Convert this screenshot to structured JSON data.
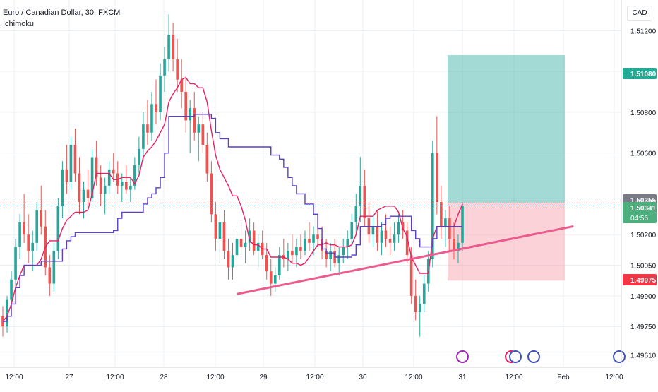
{
  "header": {
    "symbol_line": "Euro / Canadian Dollar, 30, FXCM",
    "indicator": "Ichimoku",
    "currency": "CAD"
  },
  "colors": {
    "up_candle": "#26a69a",
    "down_candle": "#ef5350",
    "conversion_line": "#e91e63",
    "base_line": "#5b3fc4",
    "trend_line": "#ec5b8d",
    "target_zone": "#26a69a",
    "stop_zone": "#f7a6b0",
    "grid": "#eceff2"
  },
  "chart_data": {
    "type": "candlestick",
    "y_axis": {
      "min": 1.4955,
      "max": 1.5135,
      "ticks": [
        "1.51200",
        "1.51000",
        "1.50800",
        "1.50600",
        "1.50200",
        "1.50050",
        "1.49900",
        "1.49750",
        "1.49610"
      ]
    },
    "x_axis": {
      "ticks": [
        "12:00",
        "27",
        "12:00",
        "28",
        "12:00",
        "29",
        "12:00",
        "30",
        "12:00",
        "31",
        "12:00",
        "Feb",
        "12:00"
      ]
    },
    "price_labels": [
      {
        "label": "1.51080",
        "color": "#22ab94"
      },
      {
        "label": "1.50355",
        "color": "#787b86"
      },
      {
        "label": "1.50341",
        "sub": "04:56",
        "color": "#4caf7d"
      },
      {
        "label": "1.49975",
        "color": "#f23645"
      }
    ],
    "long_position": {
      "entry": 1.50355,
      "target": 1.5108,
      "stop": 1.49975
    },
    "trend_line": {
      "from": 1.4991,
      "to": 1.5024
    },
    "series": [
      {
        "name": "conversion_line"
      },
      {
        "name": "base_line"
      }
    ],
    "candles_ohlc": [
      [
        1.498,
        1.4985,
        1.497,
        1.4975
      ],
      [
        1.4975,
        1.499,
        1.4972,
        1.4988
      ],
      [
        1.4988,
        1.5002,
        1.4984,
        1.4998
      ],
      [
        1.4998,
        1.5018,
        1.4994,
        1.5014
      ],
      [
        1.5014,
        1.503,
        1.5008,
        1.5026
      ],
      [
        1.5026,
        1.504,
        1.5016,
        1.502
      ],
      [
        1.502,
        1.503,
        1.5006,
        1.5012
      ],
      [
        1.5012,
        1.5022,
        1.5002,
        1.5016
      ],
      [
        1.5016,
        1.5036,
        1.5012,
        1.5032
      ],
      [
        1.5032,
        1.5044,
        1.502,
        1.5024
      ],
      [
        1.5024,
        1.5032,
        1.5,
        1.5004
      ],
      [
        1.5004,
        1.501,
        1.499,
        1.4996
      ],
      [
        1.4996,
        1.5016,
        1.4992,
        1.5012
      ],
      [
        1.5012,
        1.5038,
        1.5008,
        1.5034
      ],
      [
        1.5034,
        1.5056,
        1.5028,
        1.5052
      ],
      [
        1.5052,
        1.5064,
        1.504,
        1.5046
      ],
      [
        1.5046,
        1.5068,
        1.5042,
        1.5064
      ],
      [
        1.5064,
        1.5072,
        1.5046,
        1.505
      ],
      [
        1.505,
        1.5058,
        1.503,
        1.5036
      ],
      [
        1.5036,
        1.5046,
        1.5028,
        1.5042
      ],
      [
        1.5042,
        1.5052,
        1.5034,
        1.5038
      ],
      [
        1.5038,
        1.5062,
        1.5036,
        1.5058
      ],
      [
        1.5058,
        1.5066,
        1.5044,
        1.5048
      ],
      [
        1.5048,
        1.5054,
        1.5034,
        1.504
      ],
      [
        1.504,
        1.5048,
        1.503,
        1.5044
      ],
      [
        1.5044,
        1.5056,
        1.504,
        1.5052
      ],
      [
        1.5052,
        1.506,
        1.5046,
        1.505
      ],
      [
        1.505,
        1.5056,
        1.504,
        1.5044
      ],
      [
        1.5044,
        1.505,
        1.5036,
        1.5046
      ],
      [
        1.5046,
        1.5054,
        1.504,
        1.5042
      ],
      [
        1.5042,
        1.5048,
        1.5036,
        1.5044
      ],
      [
        1.5044,
        1.5058,
        1.5042,
        1.5054
      ],
      [
        1.5054,
        1.5068,
        1.505,
        1.5062
      ],
      [
        1.5062,
        1.508,
        1.5056,
        1.5074
      ],
      [
        1.5074,
        1.5086,
        1.5064,
        1.507
      ],
      [
        1.507,
        1.509,
        1.5066,
        1.5084
      ],
      [
        1.5084,
        1.5096,
        1.5074,
        1.508
      ],
      [
        1.508,
        1.5104,
        1.5076,
        1.5098
      ],
      [
        1.5098,
        1.5112,
        1.509,
        1.5106
      ],
      [
        1.5106,
        1.5128,
        1.51,
        1.5118
      ],
      [
        1.5118,
        1.5124,
        1.51,
        1.5106
      ],
      [
        1.5106,
        1.5116,
        1.509,
        1.5096
      ],
      [
        1.5096,
        1.5106,
        1.5082,
        1.509
      ],
      [
        1.509,
        1.5098,
        1.507,
        1.5076
      ],
      [
        1.5076,
        1.5086,
        1.506,
        1.5082
      ],
      [
        1.5082,
        1.509,
        1.5066,
        1.507
      ],
      [
        1.507,
        1.5078,
        1.5056,
        1.5074
      ],
      [
        1.5074,
        1.508,
        1.506,
        1.5064
      ],
      [
        1.5064,
        1.507,
        1.5046,
        1.505
      ],
      [
        1.505,
        1.5056,
        1.5026,
        1.503
      ],
      [
        1.503,
        1.5036,
        1.5012,
        1.5018
      ],
      [
        1.5018,
        1.503,
        1.5006,
        1.5026
      ],
      [
        1.5026,
        1.5032,
        1.5008,
        1.5012
      ],
      [
        1.5012,
        1.5018,
        1.4998,
        1.5004
      ],
      [
        1.5004,
        1.5016,
        1.4998,
        1.501
      ],
      [
        1.501,
        1.5022,
        1.5004,
        1.5018
      ],
      [
        1.5018,
        1.5026,
        1.501,
        1.5014
      ],
      [
        1.5014,
        1.5022,
        1.5006,
        1.5016
      ],
      [
        1.5016,
        1.5028,
        1.5012,
        1.5022
      ],
      [
        1.5022,
        1.5026,
        1.501,
        1.5012
      ],
      [
        1.5012,
        1.502,
        1.5004,
        1.5016
      ],
      [
        1.5016,
        1.5022,
        1.5008,
        1.501
      ],
      [
        1.501,
        1.5016,
        1.4998,
        1.5002
      ],
      [
        1.5002,
        1.5008,
        1.499,
        1.4996
      ],
      [
        1.4996,
        1.5004,
        1.4992,
        1.5
      ],
      [
        1.5,
        1.5014,
        1.4998,
        1.501
      ],
      [
        1.501,
        1.5018,
        1.5004,
        1.5008
      ],
      [
        1.5008,
        1.5016,
        1.5002,
        1.5012
      ],
      [
        1.5012,
        1.502,
        1.5006,
        1.501
      ],
      [
        1.501,
        1.5018,
        1.5004,
        1.5014
      ],
      [
        1.5014,
        1.502,
        1.5008,
        1.5012
      ],
      [
        1.5012,
        1.5022,
        1.501,
        1.5018
      ],
      [
        1.5018,
        1.5026,
        1.5012,
        1.5016
      ],
      [
        1.5016,
        1.5024,
        1.501,
        1.502
      ],
      [
        1.502,
        1.5028,
        1.5014,
        1.5018
      ],
      [
        1.5018,
        1.5024,
        1.5008,
        1.5012
      ],
      [
        1.5012,
        1.5018,
        1.5004,
        1.5008
      ],
      [
        1.5008,
        1.5016,
        1.5002,
        1.5012
      ],
      [
        1.5012,
        1.5018,
        1.5004,
        1.5006
      ],
      [
        1.5006,
        1.5014,
        1.5,
        1.501
      ],
      [
        1.501,
        1.5018,
        1.5006,
        1.5014
      ],
      [
        1.5014,
        1.5022,
        1.5008,
        1.5018
      ],
      [
        1.5018,
        1.503,
        1.5014,
        1.5026
      ],
      [
        1.5026,
        1.504,
        1.502,
        1.5034
      ],
      [
        1.5034,
        1.5058,
        1.5026,
        1.5044
      ],
      [
        1.5044,
        1.5052,
        1.5024,
        1.5028
      ],
      [
        1.5028,
        1.5036,
        1.5016,
        1.502
      ],
      [
        1.502,
        1.503,
        1.5014,
        1.5024
      ],
      [
        1.5024,
        1.5032,
        1.5012,
        1.5016
      ],
      [
        1.5016,
        1.5026,
        1.501,
        1.5022
      ],
      [
        1.5022,
        1.503,
        1.5014,
        1.5018
      ],
      [
        1.5018,
        1.5024,
        1.501,
        1.5016
      ],
      [
        1.5016,
        1.5026,
        1.5012,
        1.502
      ],
      [
        1.502,
        1.503,
        1.5016,
        1.5026
      ],
      [
        1.5026,
        1.5032,
        1.5018,
        1.5022
      ],
      [
        1.5022,
        1.5026,
        1.5006,
        1.501
      ],
      [
        1.501,
        1.5014,
        1.4986,
        1.499
      ],
      [
        1.499,
        1.4998,
        1.4978,
        1.4982
      ],
      [
        1.4982,
        1.499,
        1.497,
        1.4986
      ],
      [
        1.4986,
        1.5,
        1.4982,
        1.4996
      ],
      [
        1.4996,
        1.5012,
        1.4992,
        1.5008
      ],
      [
        1.5008,
        1.5066,
        1.5004,
        1.506
      ],
      [
        1.506,
        1.5078,
        1.503,
        1.5036
      ],
      [
        1.5036,
        1.5044,
        1.5018,
        1.5024
      ],
      [
        1.5024,
        1.5032,
        1.5014,
        1.5028
      ],
      [
        1.5028,
        1.5034,
        1.5012,
        1.5018
      ],
      [
        1.5018,
        1.5026,
        1.5008,
        1.5012
      ],
      [
        1.5012,
        1.502,
        1.5006,
        1.5016
      ],
      [
        1.5016,
        1.5036,
        1.5012,
        1.5034
      ]
    ]
  }
}
